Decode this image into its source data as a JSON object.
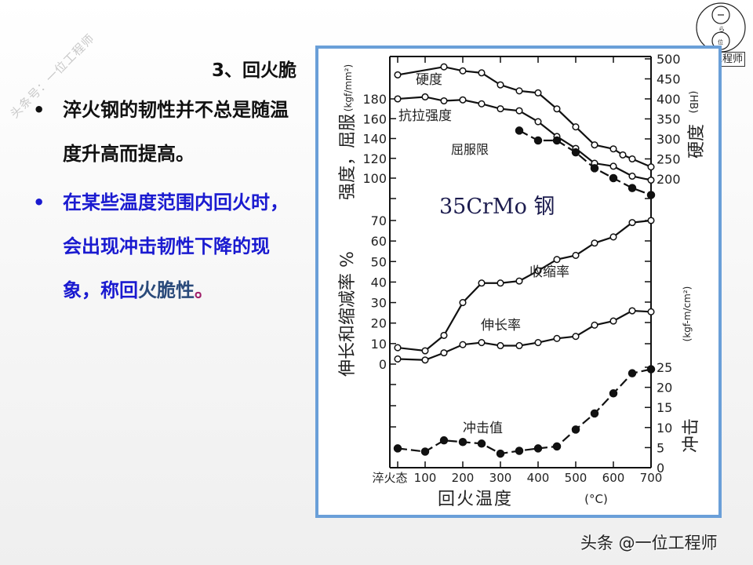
{
  "watermark": "头条号：一位工程师",
  "slide": {
    "title": "3、回火脆",
    "bullets": [
      {
        "text": "淬火钢的韧性并不总是随温度升高而提高。",
        "color": "#111111"
      },
      {
        "text_main": "在某些温度范围内回火时，会出现冲击韧性下降的现象，称回",
        "text_tail": "火脆性",
        "period": "。",
        "color": "#1a1ad0"
      }
    ],
    "bullet_symbol": "•"
  },
  "logo": {
    "icon": "circle-logo-icon",
    "text": "工程师"
  },
  "footer": "头条 @一位工程师",
  "colors": {
    "frame_border": "#6a9fd8",
    "bullet_blue": "#1a1ad0",
    "line": "#111111"
  },
  "chart_data": {
    "type": "line",
    "title": "35CrMo 钢",
    "xlabel": "回火温度",
    "xunit": "(°C)",
    "x_tick_labels": [
      "淬火态",
      "100",
      "200",
      "300",
      "400",
      "500",
      "600",
      "700"
    ],
    "left_axis_upper": {
      "label": "强度，屈服",
      "unit": "(kgf/mm²)",
      "ticks": [
        "180",
        "160",
        "140",
        "120",
        "100",
        "70"
      ]
    },
    "left_axis_lower": {
      "label": "伸长和缩减率 %",
      "ticks": [
        "70",
        "60",
        "50",
        "40",
        "30",
        "20",
        "10",
        "0"
      ]
    },
    "right_axis_upper": {
      "label": "硬度",
      "unit": "(HB)",
      "ticks": [
        "500",
        "450",
        "400",
        "350",
        "300",
        "250",
        "200"
      ]
    },
    "right_axis_lower": {
      "label": "冲击",
      "unit": "(kgf-m/cm²)",
      "ticks": [
        "25",
        "20",
        "15",
        "10",
        "5",
        "0"
      ]
    },
    "x": [
      0,
      100,
      150,
      200,
      250,
      300,
      350,
      400,
      450,
      500,
      550,
      600,
      625,
      650,
      700
    ],
    "series": [
      {
        "name": "硬度",
        "unit": "HB",
        "marker": "open",
        "style": "solid",
        "x": [
          0,
          150,
          200,
          250,
          300,
          350,
          400,
          450,
          500,
          550,
          600,
          625,
          650,
          700
        ],
        "values": [
          460,
          480,
          470,
          465,
          435,
          420,
          415,
          375,
          330,
          285,
          275,
          260,
          250,
          230
        ]
      },
      {
        "name": "抗拉强度",
        "unit": "kgf/mm²",
        "marker": "open",
        "style": "solid",
        "x": [
          0,
          100,
          150,
          200,
          250,
          300,
          350,
          400,
          450,
          500,
          550,
          600,
          650,
          700
        ],
        "values": [
          180,
          182,
          178,
          179,
          175,
          170,
          168,
          157,
          142,
          130,
          115,
          112,
          102,
          98
        ]
      },
      {
        "name": "屈服限",
        "unit": "kgf/mm²",
        "marker": "filled",
        "style": "dashed",
        "x": [
          350,
          400,
          450,
          500,
          550,
          600,
          650,
          700
        ],
        "values": [
          148,
          138,
          138,
          126,
          110,
          100,
          90,
          83
        ]
      },
      {
        "name": "收缩率",
        "unit": "%",
        "marker": "open",
        "style": "solid",
        "x": [
          0,
          100,
          150,
          200,
          250,
          300,
          350,
          400,
          450,
          500,
          550,
          600,
          650,
          700
        ],
        "values": [
          8,
          6.5,
          14,
          30,
          39.5,
          39.5,
          40.5,
          45.5,
          51,
          53,
          59,
          62,
          69,
          70
        ]
      },
      {
        "name": "伸长率",
        "unit": "%",
        "marker": "open",
        "style": "solid",
        "x": [
          0,
          100,
          150,
          200,
          250,
          300,
          350,
          400,
          450,
          500,
          550,
          600,
          650,
          700
        ],
        "values": [
          2.5,
          2,
          5.5,
          9.5,
          10.5,
          9,
          9,
          10.5,
          12.5,
          13.5,
          19,
          21,
          26,
          25.5
        ]
      },
      {
        "name": "冲击值",
        "unit": "kgf-m/cm²",
        "marker": "filled",
        "style": "dashed",
        "x": [
          0,
          100,
          150,
          200,
          250,
          300,
          350,
          400,
          450,
          500,
          550,
          600,
          650,
          700
        ],
        "values": [
          4.8,
          4,
          6.8,
          6.4,
          6,
          3.5,
          4.2,
          4.8,
          5.3,
          9.5,
          13.5,
          18.5,
          23.5,
          24.5
        ]
      }
    ],
    "labels": {
      "hardness": "硬度",
      "tensile": "抗拉强度",
      "yield": "屈服限",
      "reduction": "收缩率",
      "elongation": "伸长率",
      "impact": "冲击值"
    },
    "grid": false,
    "legend": "inline labels"
  }
}
